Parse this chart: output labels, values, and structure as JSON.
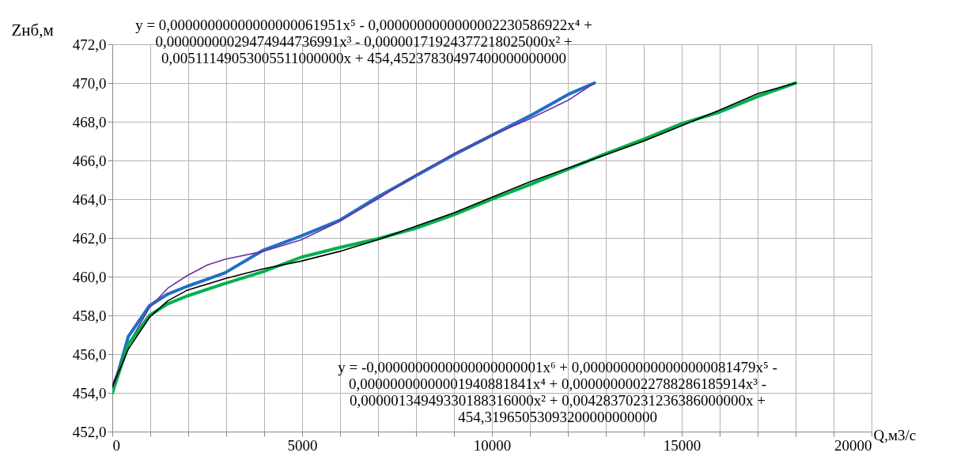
{
  "chart_data": {
    "type": "line",
    "xlabel": "Q,м3/с",
    "ylabel": "Zнб,м",
    "xlim": [
      0,
      20000
    ],
    "ylim": [
      452,
      472
    ],
    "xticks": [
      0,
      {
        "value": 1000,
        "label": null
      },
      {
        "value": 2000,
        "label": null
      },
      {
        "value": 3000,
        "label": null
      },
      {
        "value": 4000,
        "label": null
      },
      5000,
      {
        "value": 6000,
        "label": null
      },
      {
        "value": 7000,
        "label": null
      },
      {
        "value": 8000,
        "label": null
      },
      {
        "value": 9000,
        "label": null
      },
      10000,
      {
        "value": 11000,
        "label": null
      },
      {
        "value": 12000,
        "label": null
      },
      {
        "value": 13000,
        "label": null
      },
      {
        "value": 14000,
        "label": null
      },
      15000,
      {
        "value": 16000,
        "label": null
      },
      {
        "value": 17000,
        "label": null
      },
      {
        "value": 18000,
        "label": null
      },
      {
        "value": 19000,
        "label": null
      },
      20000
    ],
    "yticks": [
      {
        "value": 452,
        "label": "452,0"
      },
      {
        "value": 454,
        "label": "454,0"
      },
      {
        "value": 456,
        "label": "456,0"
      },
      {
        "value": 458,
        "label": "458,0"
      },
      {
        "value": 460,
        "label": "460,0"
      },
      {
        "value": 462,
        "label": "462,0"
      },
      {
        "value": 464,
        "label": "464,0"
      },
      {
        "value": 466,
        "label": "466,0"
      },
      {
        "value": 468,
        "label": "468,0"
      },
      {
        "value": 470,
        "label": "470,0"
      },
      {
        "value": 472,
        "label": "472,0"
      }
    ],
    "grid": true,
    "marker": "none",
    "line_style": "solid",
    "series": [
      {
        "color": "#1f6fc5",
        "x": [
          0,
          420,
          980,
          1460,
          1970,
          2970,
          3960,
          4970,
          5980,
          6980,
          7990,
          9000,
          10000,
          11000,
          12000,
          12700
        ],
        "values": [
          454.0,
          456.9,
          458.5,
          459.1,
          459.5,
          460.2,
          461.35,
          462.1,
          462.9,
          464.1,
          465.2,
          466.3,
          467.3,
          468.3,
          469.4,
          470.0
        ]
      },
      {
        "color": "#7030a0",
        "x": [
          0,
          420,
          980,
          1460,
          1970,
          2500,
          2970,
          3960,
          4970,
          5980,
          6980,
          7990,
          9000,
          10000,
          11000,
          12000,
          12700
        ],
        "values": [
          454.4,
          456.5,
          458.4,
          459.4,
          460.05,
          460.6,
          460.9,
          461.3,
          461.9,
          462.85,
          464.0,
          465.25,
          466.35,
          467.3,
          468.15,
          469.1,
          470.0
        ]
      },
      {
        "color": "#00b050",
        "x": [
          0,
          420,
          980,
          1460,
          1970,
          2970,
          3960,
          4970,
          5980,
          6980,
          7990,
          9000,
          10000,
          11000,
          12000,
          13000,
          14000,
          15000,
          16000,
          17000,
          18000
        ],
        "values": [
          454.0,
          456.5,
          458.0,
          458.6,
          459.0,
          459.65,
          460.25,
          461.0,
          461.5,
          461.95,
          462.5,
          463.2,
          464.0,
          464.75,
          465.55,
          466.35,
          467.1,
          467.9,
          468.5,
          469.3,
          470.0
        ]
      },
      {
        "color": "#000000",
        "x": [
          0,
          420,
          980,
          1460,
          1970,
          2970,
          3960,
          4970,
          5980,
          6980,
          7990,
          9000,
          10000,
          11000,
          12000,
          13000,
          14000,
          15000,
          16000,
          17000,
          18000
        ],
        "values": [
          454.3,
          456.25,
          457.9,
          458.75,
          459.3,
          459.9,
          460.4,
          460.8,
          461.3,
          461.9,
          462.6,
          463.3,
          464.1,
          464.9,
          465.6,
          466.3,
          467.0,
          467.8,
          468.6,
          469.45,
          470.0
        ]
      }
    ],
    "annotations": [
      "y = 0,00000000000000000061951x⁵ - 0,0000000000000002230586922x⁴ + 0,00000000029474944736991x³ - 0,00000171924377218025000x² + 0,00511149053005511000000x + 454,45237830497400000000000",
      "y = -0,0000000000000000000001x⁶ + 0,00000000000000000081479x⁵ - 0,00000000000001940881841x⁴ + 0,00000000022788286185914x³ - 0,00000134949330188316000x² + 0,00428370231236386000000x + 454,31965053093200000000000"
    ]
  }
}
